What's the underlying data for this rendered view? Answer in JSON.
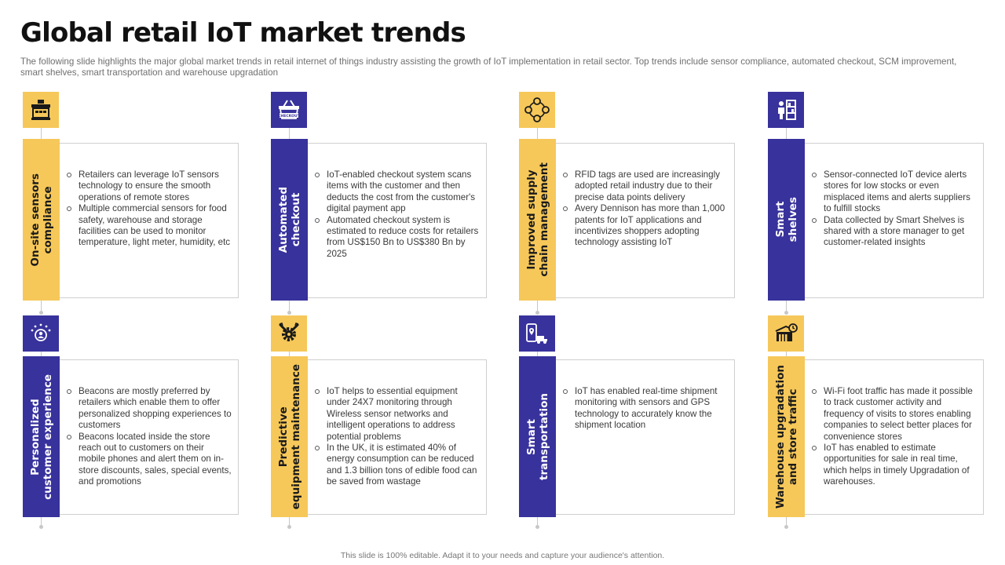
{
  "title": "Global retail IoT market trends",
  "subtitle": "The following slide highlights the major global market trends in retail internet of things industry assisting the growth of IoT  implementation in retail sector. Top trends include sensor compliance, automated checkout, SCM improvement, smart shelves, smart transportation and warehouse upgradation",
  "footer": "This slide is 100% editable. Adapt it to your needs and capture your audience's attention.",
  "colors": {
    "yellow": "#f6c85a",
    "blue": "#38329c"
  },
  "cards": [
    {
      "label": "On-site sensors\ncompliance",
      "icon": "building-sensor-icon",
      "bullets": [
        "Retailers can leverage IoT sensors technology to ensure the smooth operations of remote stores",
        "Multiple commercial sensors for food safety, warehouse and storage facilities can be used to monitor temperature, light meter, humidity, etc"
      ]
    },
    {
      "label": "Automated\ncheckout",
      "icon": "checkout-basket-icon",
      "icon_text": "CHECKOUT",
      "bullets": [
        "IoT-enabled checkout system scans items with the customer and then deducts the cost from the customer's digital payment app",
        "Automated checkout system is estimated to reduce costs for retailers from US$150 Bn to US$380 Bn by 2025"
      ]
    },
    {
      "label": "Improved supply\nchain management",
      "icon": "supply-chain-cycle-icon",
      "bullets": [
        "RFID tags are used are increasingly adopted retail industry due to their precise data points delivery",
        "Avery  Dennison has more than 1,000 patents for IoT applications and incentivizes shoppers adopting technology assisting IoT"
      ]
    },
    {
      "label": "Smart\nshelves",
      "icon": "smart-shelf-icon",
      "bullets": [
        "Sensor-connected IoT device alerts stores for low stocks or even misplaced items and alerts suppliers to fulfill stocks",
        "Data collected by Smart Shelves is shared with a store manager to get customer-related insights"
      ]
    },
    {
      "label": "Personalized\ncustomer experience",
      "icon": "customer-stars-icon",
      "bullets": [
        "Beacons are mostly preferred by retailers which enable them to offer personalized shopping experiences to customers",
        "Beacons located inside the store reach out to customers on their mobile phones and alert them on in-store discounts, sales, special events, and promotions"
      ]
    },
    {
      "label": "Predictive\nequipment maintenance",
      "icon": "maintenance-gear-icon",
      "bullets": [
        "IoT helps to essential equipment under 24X7 monitoring through Wireless sensor networks and intelligent operations to address potential problems",
        "In the UK, it is estimated 40% of energy consumption can be reduced and 1.3 billion tons of edible food can be saved from wastage"
      ]
    },
    {
      "label": "Smart\ntransportation",
      "icon": "delivery-tracking-icon",
      "bullets": [
        "IoT has enabled real-time shipment monitoring with sensors and GPS technology to accurately know the shipment location"
      ]
    },
    {
      "label": "Warehouse upgradation\nand store traffic",
      "icon": "warehouse-icon",
      "bullets": [
        "Wi-Fi foot traffic has made it possible to track customer activity  and frequency of visits to stores enabling companies to select better places for convenience stores",
        "IoT has enabled to estimate opportunities for sale in real time, which helps in timely Upgradation of warehouses."
      ]
    }
  ]
}
